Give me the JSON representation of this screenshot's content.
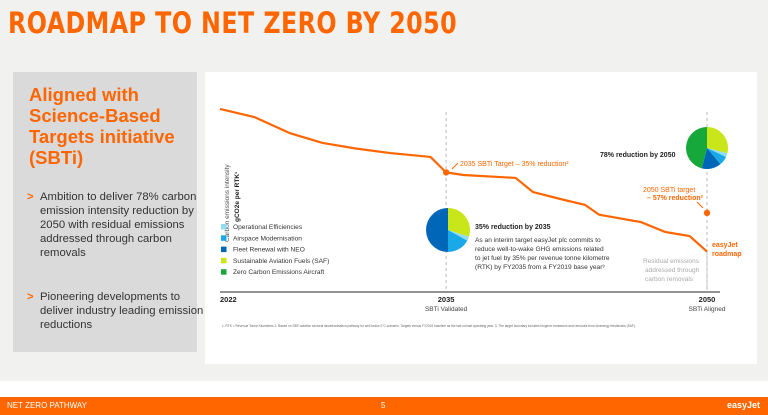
{
  "title": "ROADMAP TO NET ZERO BY 2050",
  "left_panel": {
    "heading": "Aligned with Science-Based Targets initiative (SBTi)",
    "bullets": [
      "Ambition to deliver 78% carbon emission intensity reduction by 2050 with residual emissions addressed through carbon removals",
      "Pioneering developments to deliver industry leading emission reductions"
    ]
  },
  "footer": {
    "section": "NET ZERO PATHWAY",
    "page": "5",
    "logo": "easyJet"
  },
  "colors": {
    "accent": "#ff6600",
    "operational": "#8fdcf3",
    "airspace": "#1aa9e8",
    "fleet": "#0067b8",
    "saf": "#c9e61a",
    "zero_carbon": "#17a83c"
  },
  "chart_data": {
    "type": "line",
    "ylabel": "Carbon emissions intensity",
    "ylabel_unit": "gCO2e per RTK¹",
    "x_ticks": [
      {
        "value": 2022,
        "label": "2022",
        "sublabel": ""
      },
      {
        "value": 2035,
        "label": "2035",
        "sublabel": "SBTi Validated"
      },
      {
        "value": 2050,
        "label": "2050",
        "sublabel": "SBTi Aligned"
      }
    ],
    "xlim": [
      2022,
      2050
    ],
    "ylim": [
      0,
      100
    ],
    "series": [
      {
        "name": "easyJet roadmap",
        "x": [
          2022,
          2024,
          2026,
          2027.9,
          2029.8,
          2031.8,
          2034.1,
          2035,
          2036,
          2039,
          2040,
          2041.8,
          2043,
          2043.8,
          2046.2,
          2047.6,
          2049,
          2050
        ],
        "y": [
          99.5,
          95,
          86.4,
          81,
          78,
          75.5,
          73.4,
          65,
          63.6,
          62,
          54.3,
          50,
          47.3,
          42,
          38,
          32.6,
          30.4,
          22
        ]
      }
    ],
    "targets": [
      {
        "x": 2035,
        "y": 65,
        "label": "2035 SBTi Target – 35% reduction²"
      },
      {
        "x": 2050,
        "y": 43,
        "label_1": "2050 SBTi target",
        "label_2": "– 57% reduction²"
      }
    ],
    "residual_note": [
      "Residual emissions",
      "addressed through",
      "carbon removals"
    ],
    "legend": [
      {
        "label": "Operational Efficiencies",
        "key": "operational"
      },
      {
        "label": "Airspace Modernisation",
        "key": "airspace"
      },
      {
        "label": "Fleet Renewal with NEO",
        "key": "fleet"
      },
      {
        "label": "Sustainable Aviation Fuels (SAF)",
        "key": "saf"
      },
      {
        "label": "Zero Carbon Emissions Aircraft",
        "key": "zero_carbon"
      }
    ],
    "pies": [
      {
        "title": "35% reduction by 2035",
        "year": 2035,
        "slices": [
          {
            "key": "saf",
            "value": 30
          },
          {
            "key": "operational",
            "value": 3
          },
          {
            "key": "airspace",
            "value": 17
          },
          {
            "key": "fleet",
            "value": 50
          }
        ],
        "text": [
          "As an interim target easyJet plc commits to",
          "reduce well-to-wake GHG emissions related",
          "to jet fuel by 35% per revenue tonne kilometre",
          "(RTK) by FY2035 from a FY2019 base year³"
        ]
      },
      {
        "title": "78% reduction by 2050",
        "year": 2050,
        "slices": [
          {
            "key": "saf",
            "value": 29
          },
          {
            "key": "operational",
            "value": 3
          },
          {
            "key": "airspace",
            "value": 7
          },
          {
            "key": "fleet",
            "value": 15
          },
          {
            "key": "zero_carbon",
            "value": 46
          }
        ]
      }
    ],
    "footnote": "1. RTK = Revenue Tonne Kilometres   2. Based on SBTi aviation sectoral decarbonisation pathway for well below 2°C scenario. Targets versus FY2019 baseline as the last normal operating year.   3. The target boundary includes biogenic emissions and removals from bioenergy feedstocks (SAF)."
  }
}
